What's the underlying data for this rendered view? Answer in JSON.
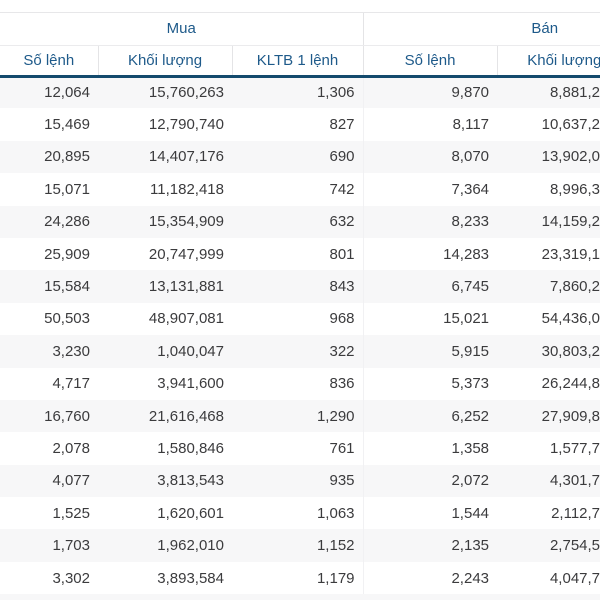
{
  "table": {
    "group_headers": {
      "buy": "Mua",
      "sell": "Bán"
    },
    "sub_headers": {
      "buy_orders": "Số lệnh",
      "buy_volume": "Khối lượng",
      "buy_avg_per_order": "KLTB 1 lệnh",
      "sell_orders": "Số lệnh",
      "sell_volume": "Khối lượng"
    },
    "rows": [
      [
        "12,064",
        "15,760,263",
        "1,306",
        "9,870",
        "8,881,2"
      ],
      [
        "15,469",
        "12,790,740",
        "827",
        "8,117",
        "10,637,2"
      ],
      [
        "20,895",
        "14,407,176",
        "690",
        "8,070",
        "13,902,0"
      ],
      [
        "15,071",
        "11,182,418",
        "742",
        "7,364",
        "8,996,3"
      ],
      [
        "24,286",
        "15,354,909",
        "632",
        "8,233",
        "14,159,2"
      ],
      [
        "25,909",
        "20,747,999",
        "801",
        "14,283",
        "23,319,1"
      ],
      [
        "15,584",
        "13,131,881",
        "843",
        "6,745",
        "7,860,2"
      ],
      [
        "50,503",
        "48,907,081",
        "968",
        "15,021",
        "54,436,0"
      ],
      [
        "3,230",
        "1,040,047",
        "322",
        "5,915",
        "30,803,2"
      ],
      [
        "4,717",
        "3,941,600",
        "836",
        "5,373",
        "26,244,8"
      ],
      [
        "16,760",
        "21,616,468",
        "1,290",
        "6,252",
        "27,909,8"
      ],
      [
        "2,078",
        "1,580,846",
        "761",
        "1,358",
        "1,577,7"
      ],
      [
        "4,077",
        "3,813,543",
        "935",
        "2,072",
        "4,301,7"
      ],
      [
        "1,525",
        "1,620,601",
        "1,063",
        "1,544",
        "2,112,7"
      ],
      [
        "1,703",
        "1,962,010",
        "1,152",
        "2,135",
        "2,754,5"
      ],
      [
        "3,302",
        "3,893,584",
        "1,179",
        "2,243",
        "4,047,7"
      ]
    ]
  },
  "colors": {
    "header_text": "#1e5a8a",
    "accent_border": "#134a6d",
    "row_stripe": "#f7f7f8",
    "data_text": "#3b3b3d"
  }
}
